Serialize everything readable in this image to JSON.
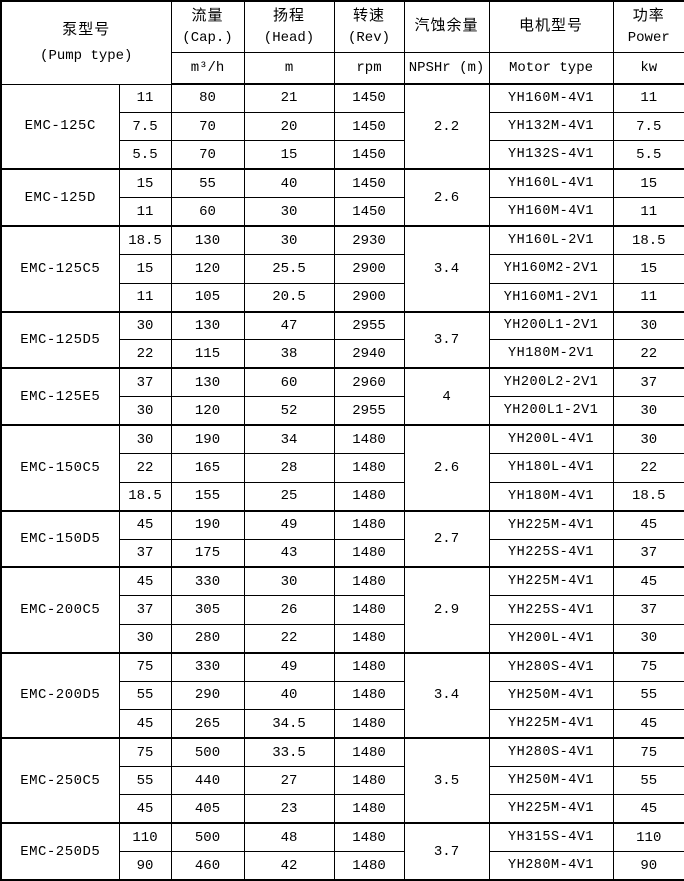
{
  "page": {
    "background_color": "#ffffff",
    "border_color": "#000000",
    "text_color": "#000000"
  },
  "table": {
    "header": {
      "pump_type": {
        "zh": "泵型号",
        "en": "(Pump type)"
      },
      "cap": {
        "zh": "流量",
        "en": "(Cap.)",
        "unit": "m³/h"
      },
      "head": {
        "zh": "扬程",
        "en": "(Head)",
        "unit": "m"
      },
      "rev": {
        "zh": "转速",
        "en": "(Rev)",
        "unit": "rpm"
      },
      "npshr": {
        "zh": "汽蚀余量",
        "unit": "NPSHr (m)"
      },
      "motor": {
        "zh": "电机型号",
        "unit": "Motor type"
      },
      "power": {
        "zh": "功率",
        "en": "Power",
        "unit": "kw"
      }
    },
    "groups": [
      {
        "model": "EMC-125C",
        "npshr": "2.2",
        "rows": [
          {
            "rating": "11",
            "cap": "80",
            "head": "21",
            "rev": "1450",
            "motor": "YH160M-4V1",
            "power": "11"
          },
          {
            "rating": "7.5",
            "cap": "70",
            "head": "20",
            "rev": "1450",
            "motor": "YH132M-4V1",
            "power": "7.5"
          },
          {
            "rating": "5.5",
            "cap": "70",
            "head": "15",
            "rev": "1450",
            "motor": "YH132S-4V1",
            "power": "5.5"
          }
        ]
      },
      {
        "model": "EMC-125D",
        "npshr": "2.6",
        "rows": [
          {
            "rating": "15",
            "cap": "55",
            "head": "40",
            "rev": "1450",
            "motor": "YH160L-4V1",
            "power": "15"
          },
          {
            "rating": "11",
            "cap": "60",
            "head": "30",
            "rev": "1450",
            "motor": "YH160M-4V1",
            "power": "11"
          }
        ]
      },
      {
        "model": "EMC-125C5",
        "npshr": "3.4",
        "rows": [
          {
            "rating": "18.5",
            "cap": "130",
            "head": "30",
            "rev": "2930",
            "motor": "YH160L-2V1",
            "power": "18.5"
          },
          {
            "rating": "15",
            "cap": "120",
            "head": "25.5",
            "rev": "2900",
            "motor": "YH160M2-2V1",
            "power": "15"
          },
          {
            "rating": "11",
            "cap": "105",
            "head": "20.5",
            "rev": "2900",
            "motor": "YH160M1-2V1",
            "power": "11"
          }
        ]
      },
      {
        "model": "EMC-125D5",
        "npshr": "3.7",
        "rows": [
          {
            "rating": "30",
            "cap": "130",
            "head": "47",
            "rev": "2955",
            "motor": "YH200L1-2V1",
            "power": "30"
          },
          {
            "rating": "22",
            "cap": "115",
            "head": "38",
            "rev": "2940",
            "motor": "YH180M-2V1",
            "power": "22"
          }
        ]
      },
      {
        "model": "EMC-125E5",
        "npshr": "4",
        "rows": [
          {
            "rating": "37",
            "cap": "130",
            "head": "60",
            "rev": "2960",
            "motor": "YH200L2-2V1",
            "power": "37"
          },
          {
            "rating": "30",
            "cap": "120",
            "head": "52",
            "rev": "2955",
            "motor": "YH200L1-2V1",
            "power": "30"
          }
        ]
      },
      {
        "model": "EMC-150C5",
        "npshr": "2.6",
        "rows": [
          {
            "rating": "30",
            "cap": "190",
            "head": "34",
            "rev": "1480",
            "motor": "YH200L-4V1",
            "power": "30"
          },
          {
            "rating": "22",
            "cap": "165",
            "head": "28",
            "rev": "1480",
            "motor": "YH180L-4V1",
            "power": "22"
          },
          {
            "rating": "18.5",
            "cap": "155",
            "head": "25",
            "rev": "1480",
            "motor": "YH180M-4V1",
            "power": "18.5"
          }
        ]
      },
      {
        "model": "EMC-150D5",
        "npshr": "2.7",
        "rows": [
          {
            "rating": "45",
            "cap": "190",
            "head": "49",
            "rev": "1480",
            "motor": "YH225M-4V1",
            "power": "45"
          },
          {
            "rating": "37",
            "cap": "175",
            "head": "43",
            "rev": "1480",
            "motor": "YH225S-4V1",
            "power": "37"
          }
        ]
      },
      {
        "model": "EMC-200C5",
        "npshr": "2.9",
        "rows": [
          {
            "rating": "45",
            "cap": "330",
            "head": "30",
            "rev": "1480",
            "motor": "YH225M-4V1",
            "power": "45"
          },
          {
            "rating": "37",
            "cap": "305",
            "head": "26",
            "rev": "1480",
            "motor": "YH225S-4V1",
            "power": "37"
          },
          {
            "rating": "30",
            "cap": "280",
            "head": "22",
            "rev": "1480",
            "motor": "YH200L-4V1",
            "power": "30"
          }
        ]
      },
      {
        "model": "EMC-200D5",
        "npshr": "3.4",
        "rows": [
          {
            "rating": "75",
            "cap": "330",
            "head": "49",
            "rev": "1480",
            "motor": "YH280S-4V1",
            "power": "75"
          },
          {
            "rating": "55",
            "cap": "290",
            "head": "40",
            "rev": "1480",
            "motor": "YH250M-4V1",
            "power": "55"
          },
          {
            "rating": "45",
            "cap": "265",
            "head": "34.5",
            "rev": "1480",
            "motor": "YH225M-4V1",
            "power": "45"
          }
        ]
      },
      {
        "model": "EMC-250C5",
        "npshr": "3.5",
        "rows": [
          {
            "rating": "75",
            "cap": "500",
            "head": "33.5",
            "rev": "1480",
            "motor": "YH280S-4V1",
            "power": "75"
          },
          {
            "rating": "55",
            "cap": "440",
            "head": "27",
            "rev": "1480",
            "motor": "YH250M-4V1",
            "power": "55"
          },
          {
            "rating": "45",
            "cap": "405",
            "head": "23",
            "rev": "1480",
            "motor": "YH225M-4V1",
            "power": "45"
          }
        ]
      },
      {
        "model": "EMC-250D5",
        "npshr": "3.7",
        "rows": [
          {
            "rating": "110",
            "cap": "500",
            "head": "48",
            "rev": "1480",
            "motor": "YH315S-4V1",
            "power": "110"
          },
          {
            "rating": "90",
            "cap": "460",
            "head": "42",
            "rev": "1480",
            "motor": "YH280M-4V1",
            "power": "90"
          }
        ]
      }
    ]
  }
}
